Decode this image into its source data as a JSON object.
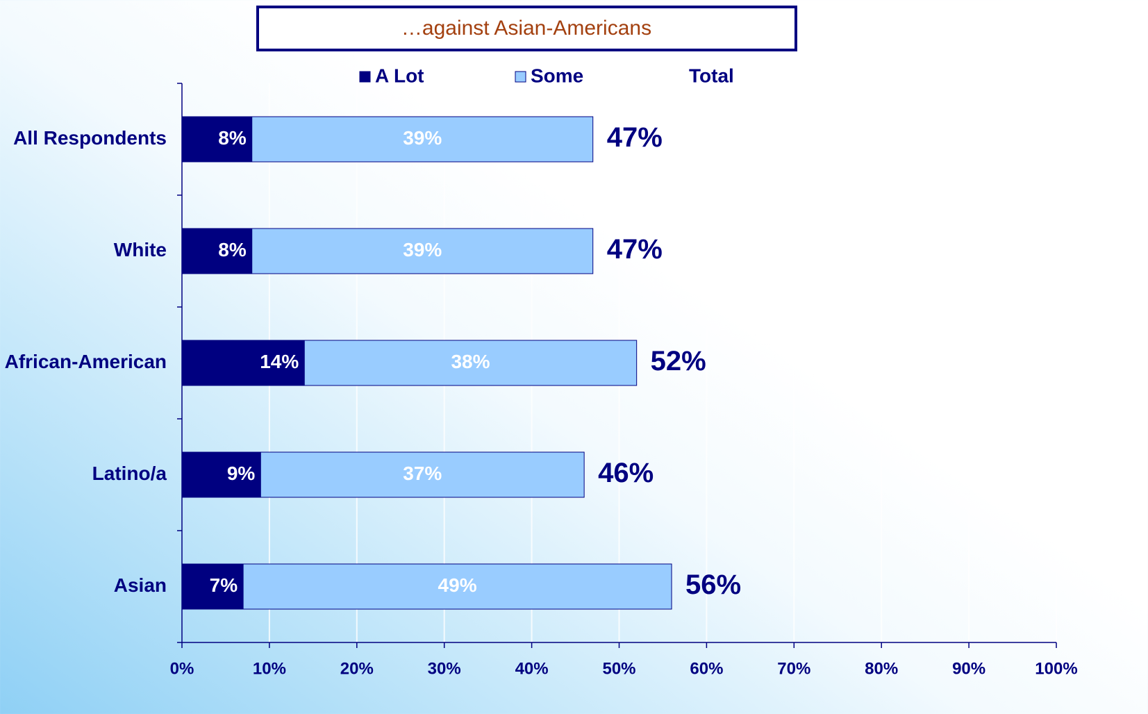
{
  "chart_data": {
    "type": "stacked-barh",
    "title": "…against Asian-Americans",
    "categories": [
      "All Respondents",
      "White",
      "African-American",
      "Latino/a",
      "Asian"
    ],
    "series": [
      {
        "name": "A Lot",
        "color": "#000080",
        "values": [
          8,
          8,
          14,
          9,
          7
        ],
        "value_labels": [
          "8%",
          "8%",
          "14%",
          "9%",
          "7%"
        ]
      },
      {
        "name": "Some",
        "color": "#99ccff",
        "values": [
          39,
          39,
          38,
          37,
          49
        ],
        "value_labels": [
          "39%",
          "39%",
          "38%",
          "37%",
          "49%"
        ]
      }
    ],
    "totals": {
      "name": "Total",
      "values": [
        47,
        47,
        52,
        46,
        56
      ],
      "value_labels": [
        "47%",
        "47%",
        "52%",
        "46%",
        "56%"
      ]
    },
    "xlim": [
      0,
      100
    ],
    "xticks": [
      {
        "value": 0,
        "label": "0%"
      },
      {
        "value": 10,
        "label": "10%"
      },
      {
        "value": 20,
        "label": "20%"
      },
      {
        "value": 30,
        "label": "30%"
      },
      {
        "value": 40,
        "label": "40%"
      },
      {
        "value": 50,
        "label": "50%"
      },
      {
        "value": 60,
        "label": "60%"
      },
      {
        "value": 70,
        "label": "70%"
      },
      {
        "value": 80,
        "label": "80%"
      },
      {
        "value": 90,
        "label": "90%"
      },
      {
        "value": 100,
        "label": "100%"
      }
    ],
    "grid": true
  }
}
